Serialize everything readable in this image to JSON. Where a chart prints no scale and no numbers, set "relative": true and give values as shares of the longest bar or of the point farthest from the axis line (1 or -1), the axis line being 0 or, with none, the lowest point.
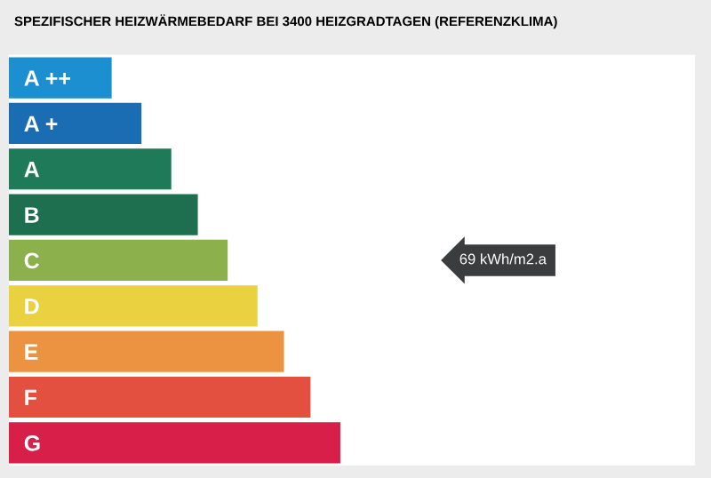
{
  "chart_data": {
    "type": "bar",
    "orientation": "horizontal",
    "relative": true,
    "title": "SPEZIFISCHER HEIZWÄRMEBEDARF BEI 3400 HEIZGRADTAGEN (REFERENZKLIMA)",
    "categories": [
      "A ++",
      "A +",
      "A",
      "B",
      "C",
      "D",
      "E",
      "F",
      "G"
    ],
    "values": [
      0.31,
      0.4,
      0.49,
      0.57,
      0.66,
      0.75,
      0.83,
      0.91,
      1
    ],
    "colors": [
      "#1b8fcf",
      "#1a6db3",
      "#1e7a58",
      "#1e6f4f",
      "#8cb04c",
      "#e9d13f",
      "#ec9341",
      "#e4503f",
      "#d71f4a"
    ],
    "annotations": [
      "69 kWh/m2.a"
    ]
  }
}
